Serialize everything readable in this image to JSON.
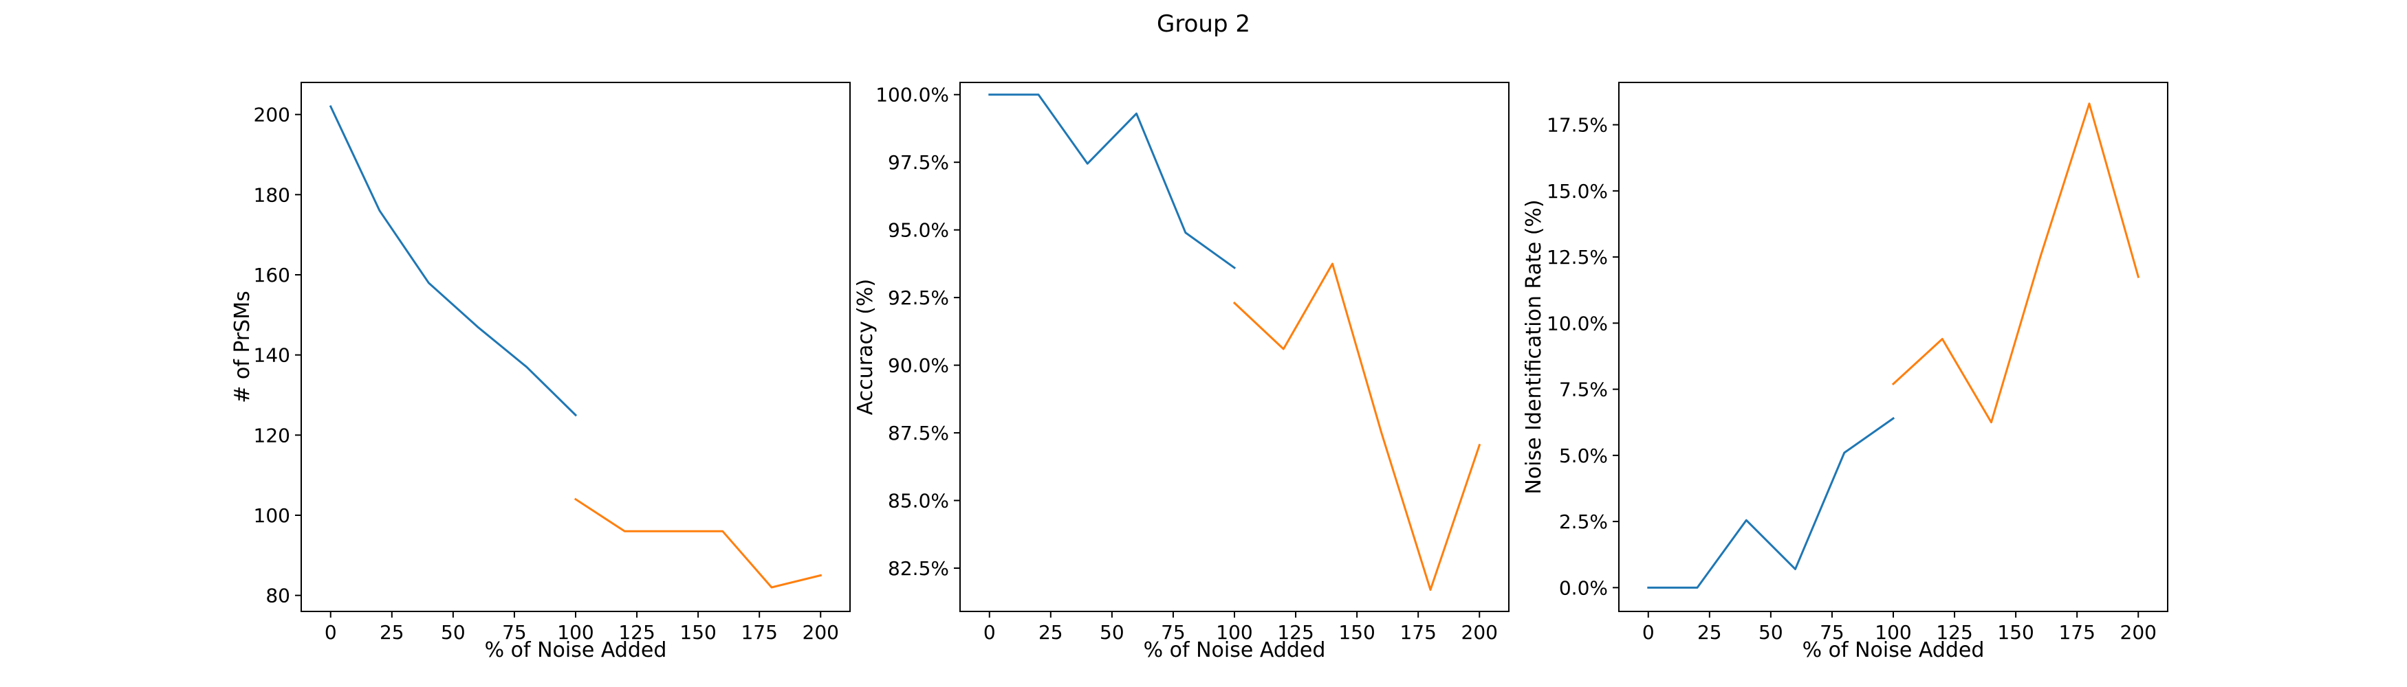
{
  "figure": {
    "suptitle": "Group 2"
  },
  "chart_data": [
    {
      "type": "line",
      "title": "",
      "xlabel": "% of Noise Added",
      "ylabel": "# of PrSMs",
      "xlim": [
        -12,
        212
      ],
      "ylim": [
        76,
        208
      ],
      "x_ticks": [
        0,
        25,
        50,
        75,
        100,
        125,
        150,
        175,
        200
      ],
      "x_tick_labels": [
        "0",
        "25",
        "50",
        "75",
        "100",
        "125",
        "150",
        "175",
        "200"
      ],
      "y_ticks": [
        80,
        100,
        120,
        140,
        160,
        180,
        200
      ],
      "y_tick_labels": [
        "80",
        "100",
        "120",
        "140",
        "160",
        "180",
        "200"
      ],
      "grid": false,
      "legend": "none",
      "series": [
        {
          "color": "#1f77b4",
          "x": [
            0,
            20,
            40,
            60,
            80,
            100
          ],
          "y": [
            202,
            176,
            158,
            147,
            137,
            125
          ]
        },
        {
          "color": "#ff7f0e",
          "x": [
            100,
            120,
            140,
            160,
            180,
            200
          ],
          "y": [
            104,
            96,
            96,
            96,
            82,
            85
          ]
        }
      ]
    },
    {
      "type": "line",
      "title": "",
      "xlabel": "% of Noise Added",
      "ylabel": "Accuracy (%)",
      "xlim": [
        -12,
        212
      ],
      "ylim": [
        80.9,
        100.45
      ],
      "x_ticks": [
        0,
        25,
        50,
        75,
        100,
        125,
        150,
        175,
        200
      ],
      "x_tick_labels": [
        "0",
        "25",
        "50",
        "75",
        "100",
        "125",
        "150",
        "175",
        "200"
      ],
      "y_ticks": [
        82.5,
        85.0,
        87.5,
        90.0,
        92.5,
        95.0,
        97.5,
        100.0
      ],
      "y_tick_labels": [
        "82.5%",
        "85.0%",
        "87.5%",
        "90.0%",
        "92.5%",
        "95.0%",
        "97.5%",
        "100.0%"
      ],
      "grid": false,
      "legend": "none",
      "series": [
        {
          "color": "#1f77b4",
          "x": [
            0,
            20,
            40,
            60,
            80,
            100
          ],
          "y": [
            100.0,
            100.0,
            97.45,
            99.3,
            94.9,
            93.6
          ]
        },
        {
          "color": "#ff7f0e",
          "x": [
            100,
            120,
            140,
            160,
            180,
            200
          ],
          "y": [
            92.3,
            90.6,
            93.75,
            87.5,
            81.7,
            87.05
          ]
        }
      ]
    },
    {
      "type": "line",
      "title": "",
      "xlabel": "% of Noise Added",
      "ylabel": "Noise Identification Rate (%)",
      "xlim": [
        -12,
        212
      ],
      "ylim": [
        -0.9,
        19.1
      ],
      "x_ticks": [
        0,
        25,
        50,
        75,
        100,
        125,
        150,
        175,
        200
      ],
      "x_tick_labels": [
        "0",
        "25",
        "50",
        "75",
        "100",
        "125",
        "150",
        "175",
        "200"
      ],
      "y_ticks": [
        0.0,
        2.5,
        5.0,
        7.5,
        10.0,
        12.5,
        15.0,
        17.5
      ],
      "y_tick_labels": [
        "0.0%",
        "2.5%",
        "5.0%",
        "7.5%",
        "10.0%",
        "12.5%",
        "15.0%",
        "17.5%"
      ],
      "grid": false,
      "legend": "none",
      "series": [
        {
          "color": "#1f77b4",
          "x": [
            0,
            20,
            40,
            60,
            80,
            100
          ],
          "y": [
            0.0,
            0.0,
            2.55,
            0.7,
            5.1,
            6.4
          ]
        },
        {
          "color": "#ff7f0e",
          "x": [
            100,
            120,
            140,
            160,
            180,
            200
          ],
          "y": [
            7.7,
            9.4,
            6.25,
            12.5,
            18.3,
            11.75
          ]
        }
      ]
    }
  ]
}
